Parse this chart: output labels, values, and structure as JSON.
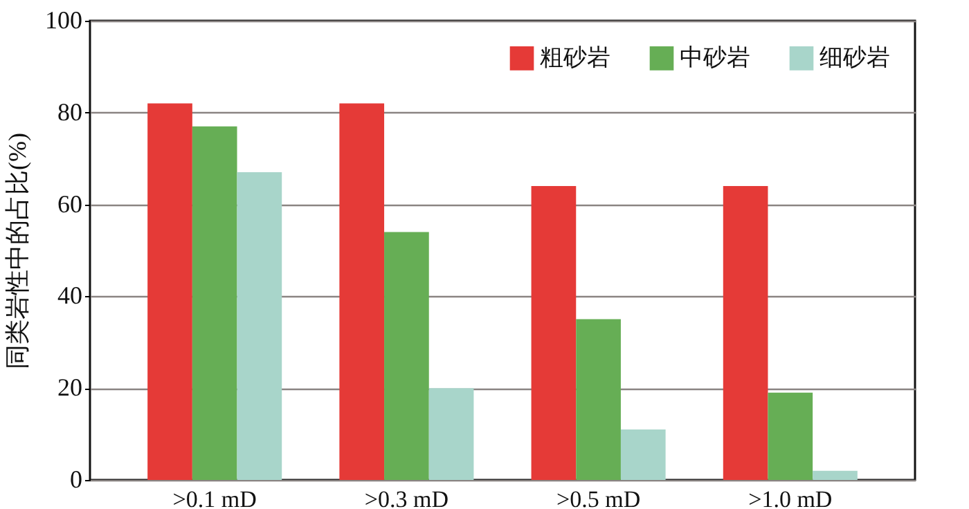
{
  "chart_data": {
    "type": "bar",
    "ylabel": "同类岩性中的占比(%)",
    "categories": [
      ">0.1 mD",
      ">0.3 mD",
      ">0.5 mD",
      ">1.0 mD"
    ],
    "series": [
      {
        "name": "粗砂岩",
        "color": "#e53a37",
        "values": [
          82,
          82,
          64,
          64
        ]
      },
      {
        "name": "中砂岩",
        "color": "#66ae55",
        "values": [
          77,
          54,
          35,
          19
        ]
      },
      {
        "name": "细砂岩",
        "color": "#a8d5ca",
        "values": [
          67,
          20,
          11,
          2
        ]
      }
    ],
    "ylim": [
      0,
      100
    ],
    "yticks": [
      0,
      20,
      40,
      60,
      80,
      100
    ],
    "grid": "y",
    "legend": "top right"
  }
}
